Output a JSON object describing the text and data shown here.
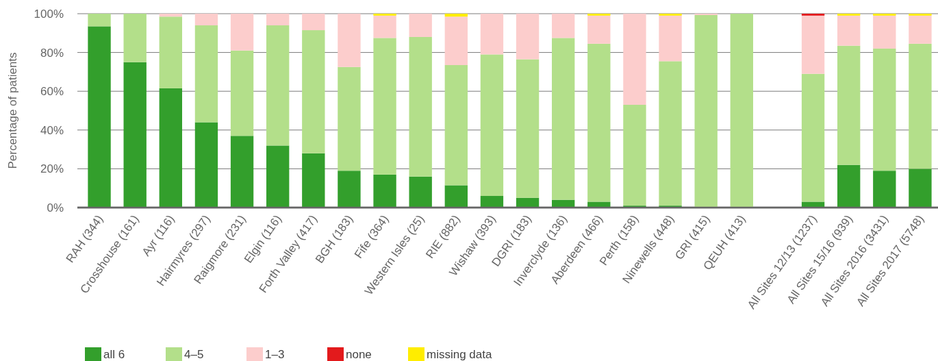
{
  "chart_data": {
    "type": "bar",
    "stacked": true,
    "ylabel": "Percentage of patients",
    "categories": [
      "RAH (344)",
      "Crosshouse (161)",
      "Ayr (116)",
      "Hairmyres (297)",
      "Raigmore (231)",
      "Elgin (116)",
      "Forth Valley (417)",
      "BGH (183)",
      "Fife (364)",
      "Western Isles (25)",
      "RIE (882)",
      "Wishaw (393)",
      "DGRI (183)",
      "Inverclyde (136)",
      "Aberdeen (466)",
      "Perth (158)",
      "Ninewells (448)",
      "GRI (415)",
      "QEUH (413)",
      null,
      "All Sites 12/13 (1237)",
      "All Sites 15/16 (939)",
      "All Sites 2016 (3431)",
      "All Sites 2017 (5748)"
    ],
    "series": [
      {
        "name": "all 6",
        "color": "#339f2c",
        "values": [
          93.5,
          75,
          61.5,
          44,
          37,
          32,
          28,
          19,
          17,
          16,
          11.5,
          6,
          5,
          4,
          3,
          1,
          1,
          0.3,
          0,
          null,
          3,
          22,
          19,
          20
        ]
      },
      {
        "name": "4–5",
        "color": "#b3df8a",
        "values": [
          6.5,
          25,
          37,
          50,
          44,
          62,
          63.5,
          53.5,
          70.5,
          72,
          62,
          73,
          71.5,
          83.5,
          81.5,
          52,
          74.5,
          99,
          100,
          null,
          66,
          61.5,
          63,
          64.5
        ]
      },
      {
        "name": "1–3",
        "color": "#fccdcc",
        "values": [
          0,
          0,
          1.5,
          6,
          19,
          6,
          8.5,
          27.5,
          11.5,
          12,
          25,
          21,
          23.5,
          12.5,
          14.5,
          47,
          23.5,
          0.7,
          0,
          null,
          30,
          15.5,
          17,
          14.5
        ]
      },
      {
        "name": "none",
        "color": "#e31a1c",
        "values": [
          0,
          0,
          0,
          0,
          0,
          0,
          0,
          0,
          0,
          0,
          0,
          0,
          0,
          0,
          0,
          0,
          0,
          0,
          0,
          null,
          1,
          0,
          0,
          0
        ]
      },
      {
        "name": "missing data",
        "color": "#ffed00",
        "values": [
          0,
          0,
          0,
          0,
          0,
          0,
          0,
          0,
          1,
          0,
          1.5,
          0,
          0,
          0,
          1,
          0,
          1,
          0,
          0,
          null,
          0,
          1,
          1,
          1
        ]
      }
    ],
    "ylim": [
      0,
      100
    ],
    "yticks": [
      {
        "value": 0,
        "label": "0%"
      },
      {
        "value": 20,
        "label": "20%"
      },
      {
        "value": 40,
        "label": "40%"
      },
      {
        "value": 60,
        "label": "60%"
      },
      {
        "value": 80,
        "label": "80%"
      },
      {
        "value": 100,
        "label": "100%"
      }
    ],
    "grid": "y",
    "legend": "bottom"
  }
}
